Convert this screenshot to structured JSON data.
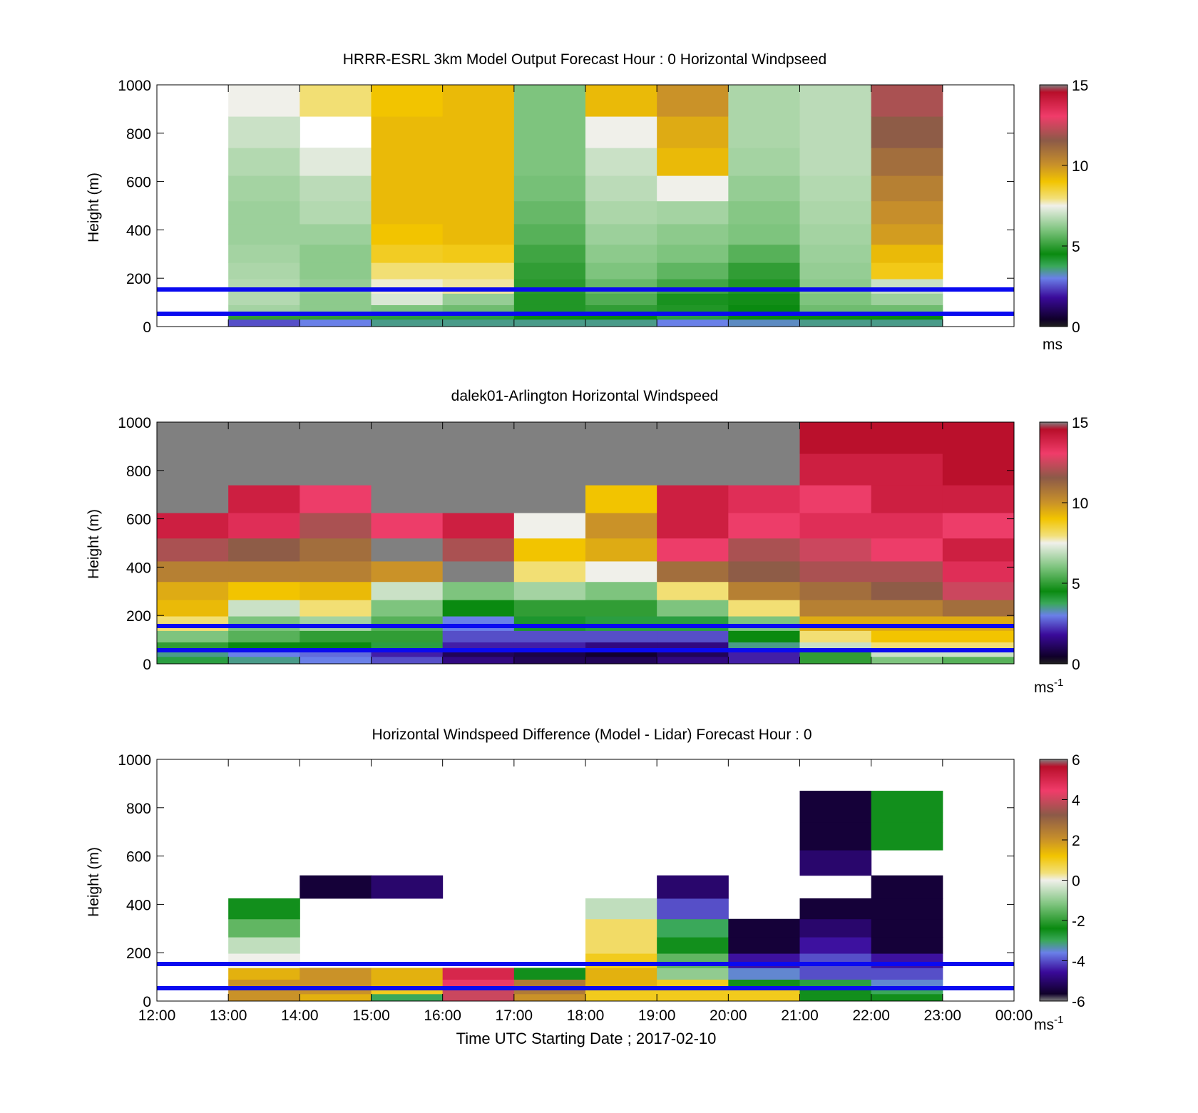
{
  "figure": {
    "xlabel": "Time UTC  Starting Date ; 2017-02-10"
  },
  "chart_data": [
    {
      "type": "heatmap",
      "title": "HRRR-ESRL 3km Model Output   Forecast Hour : 0 Horizontal Windpseed",
      "ylabel": "Height (m)",
      "xlim": [
        "12:00",
        "00:00"
      ],
      "ylim": [
        0,
        1000
      ],
      "yticks": [
        0,
        200,
        400,
        600,
        800,
        1000
      ],
      "colorbar": {
        "range": [
          0,
          15
        ],
        "ticks": [
          0,
          5,
          10,
          15
        ],
        "unit": "ms",
        "unit_sup": "",
        "palette": "speed"
      },
      "reference_lines": [
        50,
        150
      ],
      "hours": [
        "13:00",
        "14:00",
        "15:00",
        "16:00",
        "17:00",
        "18:00",
        "19:00",
        "20:00",
        "21:00",
        "22:00"
      ],
      "height_levels": [
        20,
        40,
        70,
        110,
        165,
        230,
        300,
        380,
        470,
        570,
        680,
        800,
        940
      ],
      "values": [
        [
          2.5,
          5,
          6.5,
          6.7,
          6.7,
          6.6,
          6.5,
          6.4,
          6.4,
          6.5,
          6.7,
          7,
          7.5
        ],
        [
          3,
          5,
          6.2,
          6.2,
          6.3,
          6.2,
          6.2,
          6.4,
          6.7,
          6.8,
          7.3,
          null,
          8
        ],
        [
          3.5,
          4,
          6,
          7.2,
          7.6,
          8,
          8.7,
          9,
          9.2,
          9.2,
          9.2,
          9.2,
          9
        ],
        [
          3.5,
          4,
          5.8,
          6.3,
          7.8,
          8,
          8.8,
          9.2,
          9.2,
          9.2,
          9.2,
          9.2,
          9.2
        ],
        [
          3.5,
          4.5,
          4.8,
          4.8,
          4.9,
          5,
          5.2,
          5.5,
          5.7,
          5.9,
          6,
          6,
          6
        ],
        [
          3.5,
          4.5,
          5,
          5.4,
          5.7,
          6,
          6.2,
          6.4,
          6.6,
          6.8,
          7,
          7.5,
          9.2
        ],
        [
          3,
          4,
          4.8,
          4.7,
          5.2,
          5.6,
          6,
          6.2,
          6.5,
          7.5,
          9.2,
          9.5,
          10
        ],
        [
          3.2,
          4.5,
          4.5,
          4.6,
          4.8,
          5,
          5.5,
          6,
          6.1,
          6.3,
          6.5,
          6.6,
          6.6
        ],
        [
          3.5,
          4.5,
          5.8,
          6,
          6.2,
          6.3,
          6.4,
          6.5,
          6.6,
          6.7,
          6.8,
          6.8,
          6.8
        ],
        [
          3.5,
          4.5,
          5.8,
          6.4,
          7,
          8.8,
          9.2,
          9.8,
          10.1,
          10.5,
          11,
          11.5,
          12
        ]
      ],
      "extra_columns": [],
      "blank_columns": [
        "12:00",
        "23:00"
      ]
    },
    {
      "type": "heatmap",
      "title": "dalek01-Arlington  Horizontal Windspeed",
      "ylabel": "Height (m)",
      "xlim": [
        "12:00",
        "00:00"
      ],
      "ylim": [
        0,
        1000
      ],
      "yticks": [
        0,
        200,
        400,
        600,
        800,
        1000
      ],
      "colorbar": {
        "range": [
          0,
          15
        ],
        "ticks": [
          0,
          5,
          10,
          15
        ],
        "unit": "ms",
        "unit_sup": "-1",
        "palette": "speed"
      },
      "reference_lines": [
        50,
        150
      ],
      "hours": [
        "12:00",
        "13:00",
        "14:00",
        "15:00",
        "16:00",
        "17:00",
        "18:00",
        "19:00",
        "20:00",
        "21:00",
        "22:00",
        "23:00"
      ],
      "height_levels": [
        20,
        40,
        70,
        110,
        165,
        230,
        300,
        380,
        470,
        570,
        680,
        800,
        940
      ],
      "values": [
        [
          4,
          3.5,
          5,
          6,
          8,
          9.2,
          9.5,
          10.5,
          12,
          14,
          15,
          null,
          null
        ],
        [
          3.5,
          3,
          4.5,
          5.5,
          6,
          7,
          9,
          10.5,
          11.5,
          13.5,
          14,
          null,
          null
        ],
        [
          3,
          2.8,
          4.5,
          5,
          6.5,
          8,
          9.2,
          10.5,
          11,
          12,
          13,
          null,
          null
        ],
        [
          2.5,
          2,
          4,
          5,
          5.5,
          6,
          7,
          10,
          null,
          13,
          null,
          null,
          null
        ],
        [
          1.5,
          1,
          2,
          2.5,
          3,
          4.5,
          6,
          null,
          12,
          14,
          null,
          null,
          null
        ],
        [
          1,
          0.8,
          2,
          2.5,
          4.2,
          5,
          6.5,
          8,
          9,
          7.5,
          null,
          null,
          null
        ],
        [
          1,
          0.5,
          1.5,
          2.5,
          4,
          5,
          6,
          7.5,
          9.5,
          10,
          9,
          null,
          null
        ],
        [
          1.5,
          1,
          1.5,
          2.5,
          4,
          6,
          8,
          11,
          13,
          14,
          14,
          null,
          null
        ],
        [
          2,
          2,
          3.5,
          4.5,
          6,
          8,
          10.5,
          11.5,
          12,
          13,
          13.5,
          null,
          null
        ],
        [
          5,
          5,
          7,
          8,
          9.5,
          10.5,
          11,
          12,
          12.5,
          13.5,
          13,
          14,
          14.5
        ],
        [
          6,
          7,
          8,
          9,
          9.5,
          10.5,
          11.5,
          12,
          13,
          13.5,
          14,
          14,
          14.5
        ],
        [
          5.5,
          7,
          8,
          9,
          9.5,
          11,
          12.5,
          13.5,
          14,
          13,
          14,
          14.5,
          14.5
        ]
      ],
      "blank_columns": []
    },
    {
      "type": "heatmap",
      "title": "Horizontal Windspeed Difference (Model - Lidar) Forecast Hour : 0",
      "ylabel": "Height (m)",
      "xlim": [
        "12:00",
        "00:00"
      ],
      "ylim": [
        0,
        1000
      ],
      "yticks": [
        0,
        200,
        400,
        600,
        800,
        1000
      ],
      "xticks": [
        "12:00",
        "13:00",
        "14:00",
        "15:00",
        "16:00",
        "17:00",
        "18:00",
        "19:00",
        "20:00",
        "21:00",
        "22:00",
        "23:00",
        "00:00"
      ],
      "colorbar": {
        "range": [
          -6,
          6
        ],
        "ticks": [
          -6,
          -4,
          -2,
          0,
          2,
          4,
          6
        ],
        "unit": "ms",
        "unit_sup": "-1",
        "palette": "diff"
      },
      "reference_lines": [
        50,
        150
      ],
      "hours": [
        "13:00",
        "14:00",
        "15:00",
        "16:00",
        "17:00",
        "18:00",
        "19:00",
        "20:00",
        "21:00",
        "22:00"
      ],
      "height_levels": [
        20,
        40,
        70,
        110,
        165,
        230,
        300,
        380,
        470,
        570,
        680,
        800,
        940
      ],
      "values": [
        [
          2,
          2,
          2,
          1.5,
          0,
          -0.5,
          -1.5,
          -2.5,
          null,
          null,
          null,
          null,
          null
        ],
        [
          1.5,
          2,
          2,
          2,
          null,
          null,
          null,
          null,
          -5.5,
          null,
          null,
          null,
          null
        ],
        [
          -3,
          1,
          1.5,
          1.5,
          null,
          null,
          null,
          null,
          -5,
          null,
          null,
          null,
          null
        ],
        [
          4,
          4,
          4.5,
          5,
          null,
          null,
          null,
          null,
          null,
          null,
          null,
          null,
          null
        ],
        [
          2,
          2.5,
          2.5,
          -2.5,
          null,
          null,
          null,
          null,
          null,
          null,
          null,
          null,
          null
        ],
        [
          1,
          1,
          1.5,
          1.5,
          1,
          0.5,
          0.5,
          -0.5,
          null,
          null,
          null,
          null,
          null
        ],
        [
          1,
          1,
          1,
          -1,
          -1.5,
          -2.5,
          -3,
          -4,
          -5,
          null,
          null,
          null,
          null
        ],
        [
          1,
          1,
          -2.5,
          -3.5,
          -4.5,
          -5.5,
          -5.5,
          null,
          null,
          null,
          null,
          null,
          null
        ],
        [
          -2.5,
          -2.5,
          -2.8,
          -4,
          -4,
          -4.5,
          -5,
          -5.5,
          null,
          -5,
          -5.5,
          -5.5,
          null
        ],
        [
          -2.5,
          -3,
          -3.5,
          -4,
          -4.5,
          -5.5,
          -5.5,
          -5.5,
          -5.5,
          null,
          -2.5,
          -2.5,
          null
        ]
      ],
      "blank_columns": [
        "12:00",
        "23:00"
      ]
    }
  ]
}
